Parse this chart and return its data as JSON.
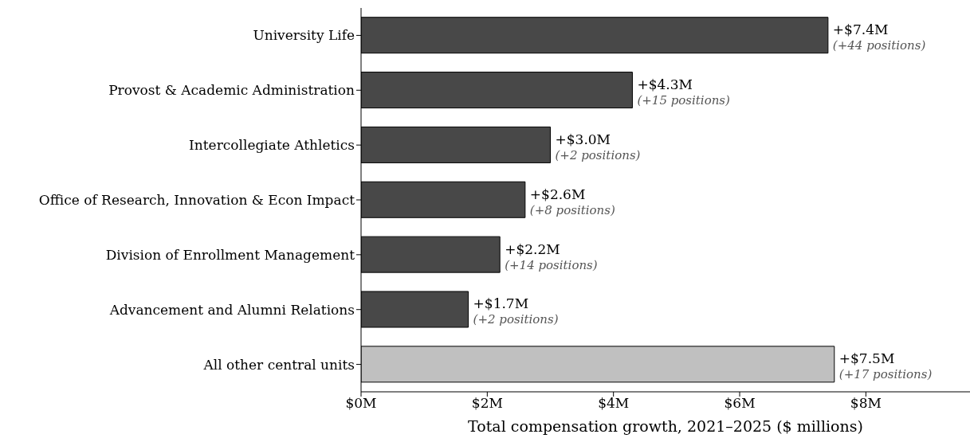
{
  "chart_data": {
    "type": "bar",
    "orientation": "horizontal",
    "categories": [
      "University Life",
      "Provost & Academic Administration",
      "Intercollegiate Athletics",
      "Office of Research, Innovation & Econ Impact",
      "Division of Enrollment Management",
      "Advancement and Alumni Relations",
      "All other central units"
    ],
    "values": [
      7.4,
      4.3,
      3.0,
      2.6,
      2.2,
      1.7,
      7.5
    ],
    "colors": [
      "#484848",
      "#484848",
      "#484848",
      "#484848",
      "#484848",
      "#484848",
      "#c0c0c0"
    ],
    "value_labels": [
      "+$7.4M",
      "+$4.3M",
      "+$3.0M",
      "+$2.6M",
      "+$2.2M",
      "+$1.7M",
      "+$7.5M"
    ],
    "annotations": [
      {
        "text": "(+44 positions)",
        "x": 7.4,
        "y": "University Life"
      },
      {
        "text": "(+15 positions)",
        "x": 4.3,
        "y": "Provost & Academic Administration"
      },
      {
        "text": "(+2 positions)",
        "x": 3.0,
        "y": "Intercollegiate Athletics"
      },
      {
        "text": "(+8 positions)",
        "x": 2.6,
        "y": "Office of Research, Innovation & Econ Impact"
      },
      {
        "text": "(+14 positions)",
        "x": 2.2,
        "y": "Division of Enrollment Management"
      },
      {
        "text": "(+2 positions)",
        "x": 1.7,
        "y": "Advancement and Alumni Relations"
      },
      {
        "text": "(+17 positions)",
        "x": 7.5,
        "y": "All other central units"
      }
    ],
    "xlabel": "Total compensation growth, 2021–2025 ($ millions)",
    "xlim": [
      0,
      9.65
    ],
    "xticks": [
      {
        "value": 0,
        "label": "$0M"
      },
      {
        "value": 2,
        "label": "$2M"
      },
      {
        "value": 4,
        "label": "$4M"
      },
      {
        "value": 6,
        "label": "$6M"
      },
      {
        "value": 8,
        "label": "$8M"
      }
    ],
    "grid": false,
    "legend": false
  }
}
